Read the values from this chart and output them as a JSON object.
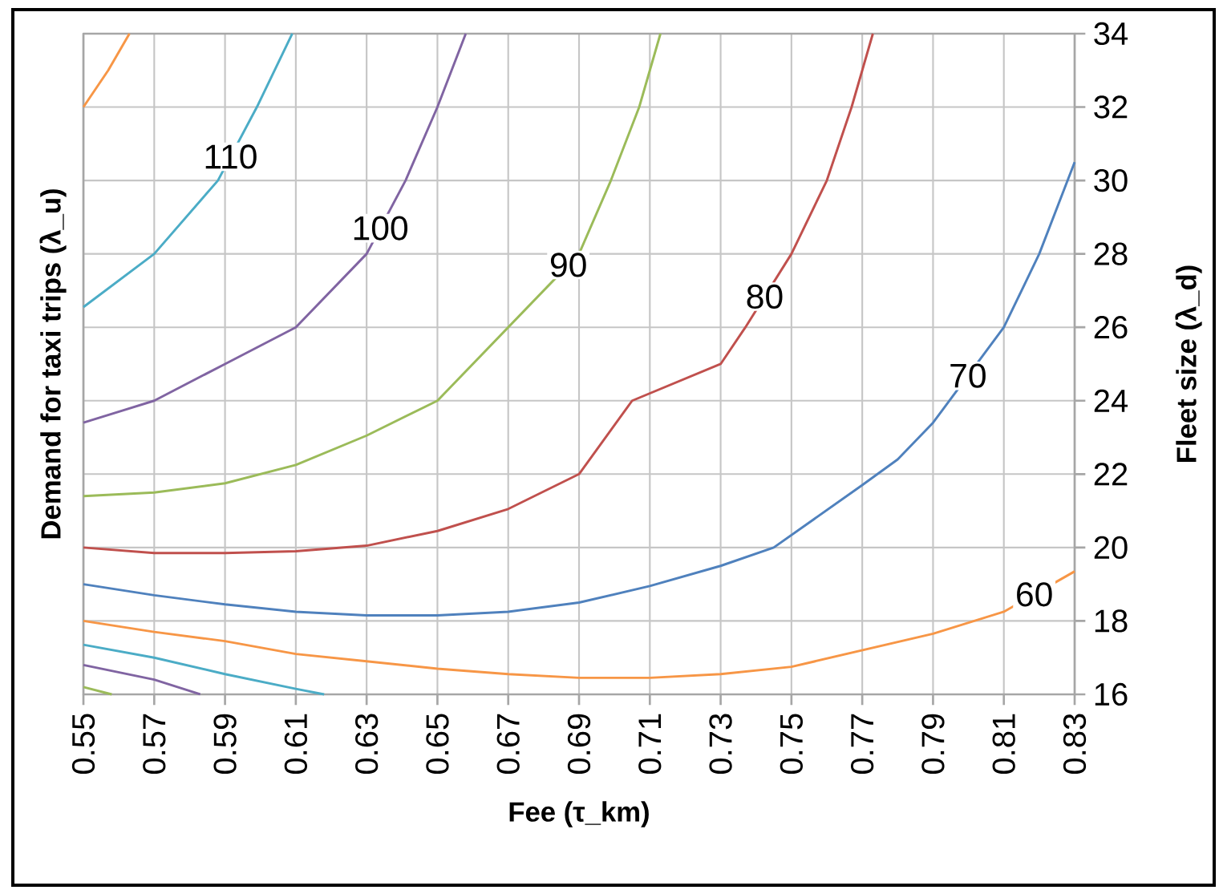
{
  "chart_data": {
    "type": "line",
    "xlabel": "Fee (τ_km)",
    "ylabel": "Demand for taxi trips (λ_u)",
    "y2label": "Fleet size (λ_d)",
    "xlim": [
      0.55,
      0.83
    ],
    "xticks": [
      0.55,
      0.57,
      0.59,
      0.61,
      0.63,
      0.65,
      0.67,
      0.69,
      0.71,
      0.73,
      0.75,
      0.77,
      0.79,
      0.81,
      0.83
    ],
    "ylim": [
      16,
      34
    ],
    "yticks": [
      16,
      18,
      20,
      22,
      24,
      26,
      28,
      30,
      32,
      34
    ],
    "grid": true,
    "marker": "none",
    "line_style": "solid",
    "series": [
      {
        "name": "60",
        "color": "#f79646",
        "x": [
          0.55,
          0.57,
          0.59,
          0.61,
          0.63,
          0.65,
          0.67,
          0.69,
          0.71,
          0.73,
          0.75,
          0.77,
          0.79,
          0.81,
          0.83
        ],
        "values": [
          18.0,
          17.7,
          17.45,
          17.1,
          16.9,
          16.7,
          16.55,
          16.45,
          16.45,
          16.55,
          16.75,
          17.2,
          17.65,
          18.25,
          19.35
        ]
      },
      {
        "name": "70",
        "color": "#4f81bd",
        "x": [
          0.55,
          0.57,
          0.59,
          0.61,
          0.63,
          0.65,
          0.67,
          0.69,
          0.71,
          0.73,
          0.745,
          0.77,
          0.78,
          0.79,
          0.81,
          0.82,
          0.83
        ],
        "values": [
          19.0,
          18.7,
          18.45,
          18.25,
          18.15,
          18.15,
          18.25,
          18.5,
          18.95,
          19.5,
          20,
          21.7,
          22.4,
          23.4,
          26,
          28,
          30.5
        ]
      },
      {
        "name": "80",
        "color": "#c0504d",
        "x": [
          0.55,
          0.57,
          0.59,
          0.61,
          0.63,
          0.65,
          0.67,
          0.69,
          0.705,
          0.73,
          0.737,
          0.75,
          0.76,
          0.767,
          0.773
        ],
        "values": [
          20.0,
          19.85,
          19.85,
          19.9,
          20.05,
          20.45,
          21.05,
          22,
          24,
          25,
          26,
          28,
          30,
          32,
          34
        ]
      },
      {
        "name": "90",
        "color": "#9bbb59",
        "x": [
          0.55,
          0.57,
          0.59,
          0.61,
          0.63,
          0.65,
          0.67,
          0.69,
          0.699,
          0.707,
          0.713
        ],
        "values": [
          21.4,
          21.5,
          21.75,
          22.25,
          23.05,
          24,
          26,
          28,
          30,
          32,
          34
        ]
      },
      {
        "name": "100",
        "color": "#8064a2",
        "x": [
          0.55,
          0.57,
          0.59,
          0.61,
          0.63,
          0.641,
          0.65,
          0.658
        ],
        "values": [
          23.4,
          24,
          25,
          26,
          28,
          30,
          32,
          34
        ]
      },
      {
        "name": "110",
        "color": "#4bacc6",
        "x": [
          0.55,
          0.57,
          0.588,
          0.599,
          0.609
        ],
        "values": [
          26.55,
          28,
          30,
          32,
          34
        ]
      },
      {
        "color": "#f79646",
        "x": [
          0.55,
          0.557,
          0.563
        ],
        "values": [
          32,
          33,
          34
        ]
      },
      {
        "color": "#4bacc6",
        "x": [
          0.55,
          0.57,
          0.59,
          0.61,
          0.618
        ],
        "values": [
          17.35,
          17.0,
          16.55,
          16.15,
          16
        ]
      },
      {
        "color": "#8064a2",
        "x": [
          0.55,
          0.57,
          0.583
        ],
        "values": [
          16.8,
          16.4,
          16
        ]
      },
      {
        "color": "#9bbb59",
        "x": [
          0.55,
          0.558
        ],
        "values": [
          16.2,
          16
        ]
      }
    ]
  }
}
